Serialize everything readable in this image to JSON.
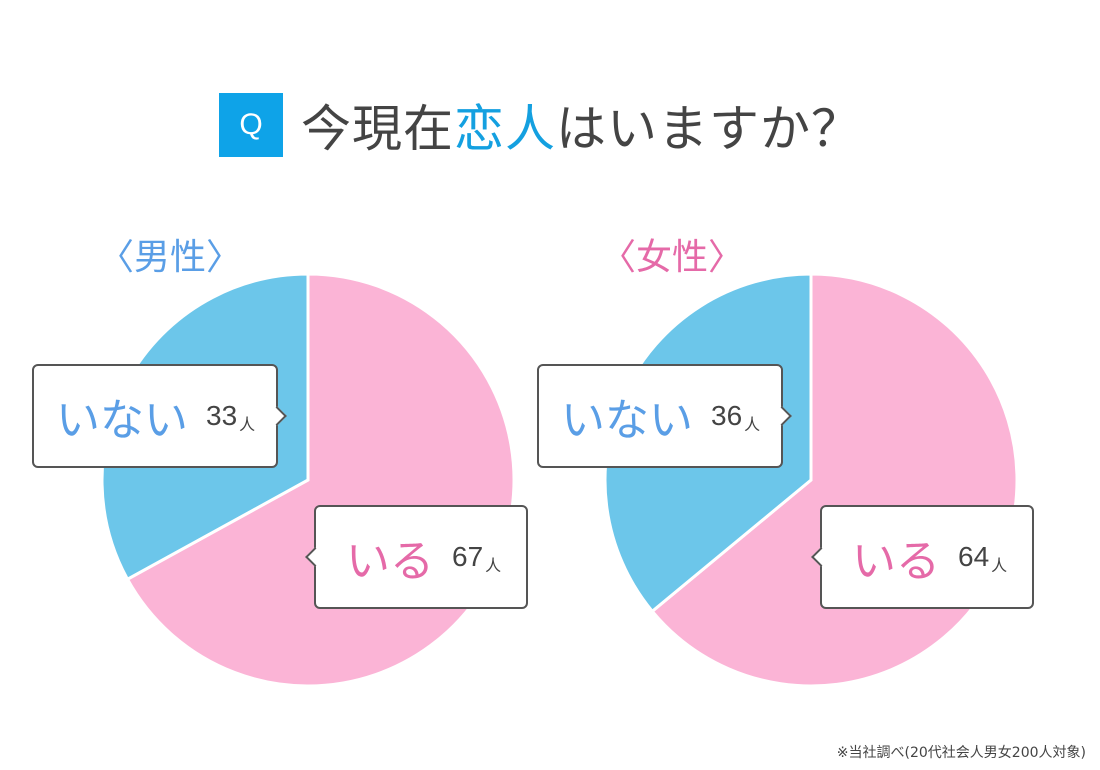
{
  "title": {
    "badge": "Q",
    "prefix": "今現在",
    "highlight": "恋人",
    "suffix": "はいますか？"
  },
  "colors": {
    "badge": "#0ea3e8",
    "highlight": "#14a0e0",
    "yes_slice": "#fbb4d6",
    "no_slice": "#6cc6ea",
    "male_label": "#5a9ee6",
    "female_label": "#e56aa8"
  },
  "groups": [
    {
      "label": "〈男性〉",
      "no": {
        "label": "いない",
        "count": "33",
        "unit": "人"
      },
      "yes": {
        "label": "いる",
        "count": "67",
        "unit": "人"
      }
    },
    {
      "label": "〈女性〉",
      "no": {
        "label": "いない",
        "count": "36",
        "unit": "人"
      },
      "yes": {
        "label": "いる",
        "count": "64",
        "unit": "人"
      }
    }
  ],
  "footnote": "※当社調べ(20代社会人男女200人対象)",
  "chart_data": [
    {
      "type": "pie",
      "title": "〈男性〉",
      "categories": [
        "いる",
        "いない"
      ],
      "values": [
        67,
        33
      ],
      "unit": "人",
      "colors": [
        "#fbb4d6",
        "#6cc6ea"
      ]
    },
    {
      "type": "pie",
      "title": "〈女性〉",
      "categories": [
        "いる",
        "いない"
      ],
      "values": [
        64,
        36
      ],
      "unit": "人",
      "colors": [
        "#fbb4d6",
        "#6cc6ea"
      ]
    }
  ]
}
